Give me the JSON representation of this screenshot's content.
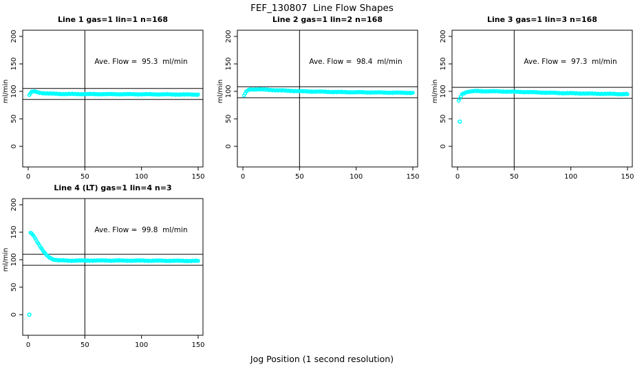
{
  "figure": {
    "title": "FEF_130807  Line Flow Shapes",
    "xlabel": "Jog Position (1 second resolution)",
    "background": "#FFFFFF",
    "axis_color": "#000000"
  },
  "chart_data": [
    {
      "type": "scatter",
      "title": "Line 1 gas=1 lin=1 n=168",
      "annotation": "Ave. Flow =  95.3  ml/min",
      "ave_flow": 95.3,
      "ylabel": "ml/min",
      "x_ticks": [
        0,
        50,
        100,
        150
      ],
      "y_ticks": [
        0,
        50,
        100,
        150,
        200
      ],
      "xlim": [
        0,
        150
      ],
      "ylim": [
        -37,
        211
      ],
      "ref_line_x": 50,
      "ref_lines_y": [
        85.3,
        105.3
      ],
      "point_color": "#00FFFF",
      "curve_points": [
        [
          1,
          93.5
        ],
        [
          3,
          99.5
        ],
        [
          5,
          100
        ],
        [
          10,
          97.5
        ],
        [
          18,
          96
        ],
        [
          30,
          95.2
        ],
        [
          60,
          95
        ],
        [
          100,
          94.8
        ],
        [
          130,
          94.4
        ],
        [
          150,
          94.2
        ]
      ],
      "outliers": []
    },
    {
      "type": "scatter",
      "title": "Line 2 gas=1 lin=2 n=168",
      "annotation": "Ave. Flow =  98.4  ml/min",
      "ave_flow": 98.4,
      "ylabel": "ml/min",
      "x_ticks": [
        0,
        50,
        100,
        150
      ],
      "y_ticks": [
        0,
        50,
        100,
        150,
        200
      ],
      "xlim": [
        0,
        150
      ],
      "ylim": [
        -37,
        211
      ],
      "ref_line_x": 50,
      "ref_lines_y": [
        88.4,
        108.4
      ],
      "point_color": "#00FFFF",
      "curve_points": [
        [
          1,
          92.5
        ],
        [
          3,
          100
        ],
        [
          6,
          103.5
        ],
        [
          14,
          103.8
        ],
        [
          30,
          102
        ],
        [
          55,
          100
        ],
        [
          85,
          98.7
        ],
        [
          120,
          98
        ],
        [
          150,
          97.3
        ]
      ],
      "outliers": []
    },
    {
      "type": "scatter",
      "title": "Line 3 gas=1 lin=3 n=168",
      "annotation": "Ave. Flow =  97.3  ml/min",
      "ave_flow": 97.3,
      "ylabel": "ml/min",
      "x_ticks": [
        0,
        50,
        100,
        150
      ],
      "y_ticks": [
        0,
        50,
        100,
        150,
        200
      ],
      "xlim": [
        0,
        150
      ],
      "ylim": [
        -37,
        211
      ],
      "ref_line_x": 50,
      "ref_lines_y": [
        87.3,
        107.3
      ],
      "point_color": "#00FFFF",
      "curve_points": [
        [
          1,
          83
        ],
        [
          4,
          95
        ],
        [
          8,
          99
        ],
        [
          15,
          100.5
        ],
        [
          35,
          100
        ],
        [
          60,
          98.8
        ],
        [
          90,
          97
        ],
        [
          120,
          95.8
        ],
        [
          150,
          95
        ]
      ],
      "outliers": [
        [
          2,
          45
        ]
      ]
    },
    {
      "type": "scatter",
      "title": "Line 4 (LT) gas=1 lin=4 n=3",
      "annotation": "Ave. Flow =  99.8  ml/min",
      "ave_flow": 99.8,
      "ylabel": "ml/min",
      "x_ticks": [
        0,
        50,
        100,
        150
      ],
      "y_ticks": [
        0,
        50,
        100,
        150,
        200
      ],
      "xlim": [
        0,
        150
      ],
      "ylim": [
        -37,
        211
      ],
      "ref_line_x": 50,
      "ref_lines_y": [
        89.8,
        109.8
      ],
      "point_color": "#00FFFF",
      "curve_points": [
        [
          2,
          149
        ],
        [
          3,
          148
        ],
        [
          5,
          143
        ],
        [
          7,
          136
        ],
        [
          9,
          129
        ],
        [
          12,
          119
        ],
        [
          15,
          111
        ],
        [
          18,
          105
        ],
        [
          22,
          100.5
        ],
        [
          27,
          98.8
        ],
        [
          35,
          98.3
        ],
        [
          60,
          98.5
        ],
        [
          100,
          98.3
        ],
        [
          150,
          97.8
        ]
      ],
      "outliers": [
        [
          1,
          0
        ]
      ]
    }
  ]
}
